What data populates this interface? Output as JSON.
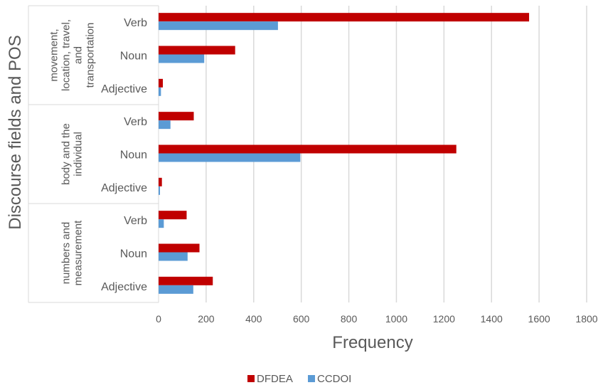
{
  "chart_data": {
    "type": "bar",
    "orientation": "horizontal",
    "xlabel": "Frequency",
    "ylabel": "Discourse fields and POS",
    "xlim": [
      0,
      1800
    ],
    "x_ticks": [
      "0",
      "200",
      "400",
      "600",
      "800",
      "1000",
      "1200",
      "1400",
      "1600",
      "1800"
    ],
    "grid": "vertical",
    "legend_position": "bottom",
    "groups": [
      {
        "label_lines": [
          "movement,",
          "location, travel,",
          "and",
          "transportation"
        ],
        "categories": [
          "Verb",
          "Noun",
          "Adjective"
        ]
      },
      {
        "label_lines": [
          "body and the",
          "individual"
        ],
        "categories": [
          "Verb",
          "Noun",
          "Adjective"
        ]
      },
      {
        "label_lines": [
          "numbers and",
          "measurement"
        ],
        "categories": [
          "Verb",
          "Noun",
          "Adjective"
        ]
      }
    ],
    "series": [
      {
        "name": "DFDEA",
        "color": "#c00000",
        "values": [
          1558,
          322,
          18,
          148,
          1252,
          14,
          118,
          172,
          228
        ]
      },
      {
        "name": "CCDOI",
        "color": "#5b9bd5",
        "values": [
          502,
          192,
          10,
          50,
          596,
          6,
          22,
          122,
          146
        ]
      }
    ]
  }
}
